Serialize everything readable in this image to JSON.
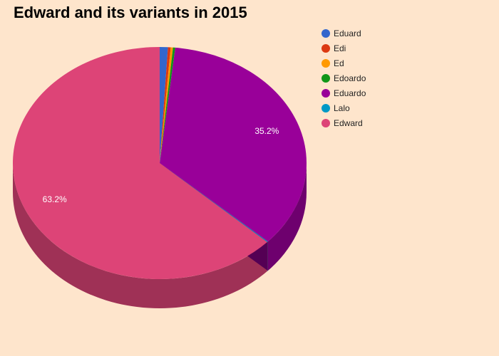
{
  "chart_data": {
    "type": "pie",
    "title": "Edward and its variants in 2015",
    "slices": [
      {
        "name": "Eduard",
        "percent": 0.9,
        "color": "#3366cc"
      },
      {
        "name": "Edi",
        "percent": 0.3,
        "color": "#dc3912"
      },
      {
        "name": "Ed",
        "percent": 0.25,
        "color": "#ff9900"
      },
      {
        "name": "Edoardo",
        "percent": 0.25,
        "color": "#109618"
      },
      {
        "name": "Eduardo",
        "percent": 35.2,
        "color": "#990099"
      },
      {
        "name": "Lalo",
        "percent": 0.1,
        "color": "#0099c6"
      },
      {
        "name": "Edward",
        "percent": 63.2,
        "color": "#dd4477"
      }
    ],
    "data_labels": [
      {
        "series": "Eduardo",
        "text": "35.2%"
      },
      {
        "series": "Edward",
        "text": "63.2%"
      }
    ],
    "legend": "top-right",
    "style": "3d"
  }
}
